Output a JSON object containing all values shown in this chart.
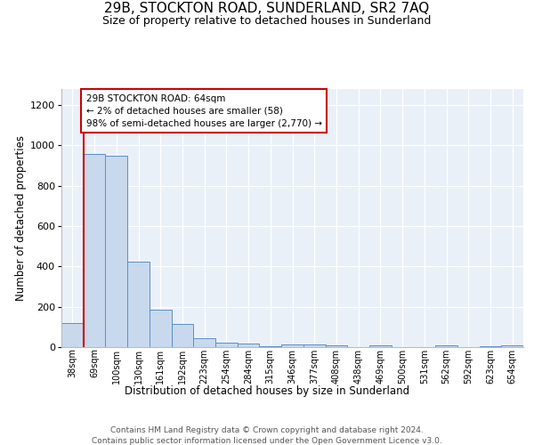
{
  "title": "29B, STOCKTON ROAD, SUNDERLAND, SR2 7AQ",
  "subtitle": "Size of property relative to detached houses in Sunderland",
  "xlabel": "Distribution of detached houses by size in Sunderland",
  "ylabel": "Number of detached properties",
  "categories": [
    "38sqm",
    "69sqm",
    "100sqm",
    "130sqm",
    "161sqm",
    "192sqm",
    "223sqm",
    "254sqm",
    "284sqm",
    "315sqm",
    "346sqm",
    "377sqm",
    "408sqm",
    "438sqm",
    "469sqm",
    "500sqm",
    "531sqm",
    "562sqm",
    "592sqm",
    "623sqm",
    "654sqm"
  ],
  "values": [
    120,
    960,
    950,
    425,
    185,
    115,
    42,
    20,
    16,
    5,
    14,
    14,
    8,
    0,
    10,
    0,
    0,
    10,
    0,
    5,
    10
  ],
  "bar_color": "#c9d9ed",
  "bar_edge_color": "#5b8fc9",
  "vline_color": "#cc0000",
  "annotation_line1": "29B STOCKTON ROAD: 64sqm",
  "annotation_line2": "← 2% of detached houses are smaller (58)",
  "annotation_line3": "98% of semi-detached houses are larger (2,770) →",
  "annotation_box_edge": "#cc0000",
  "ylim": [
    0,
    1280
  ],
  "yticks": [
    0,
    200,
    400,
    600,
    800,
    1000,
    1200
  ],
  "background_color": "#eaf0f8",
  "footer_line1": "Contains HM Land Registry data © Crown copyright and database right 2024.",
  "footer_line2": "Contains public sector information licensed under the Open Government Licence v3.0."
}
